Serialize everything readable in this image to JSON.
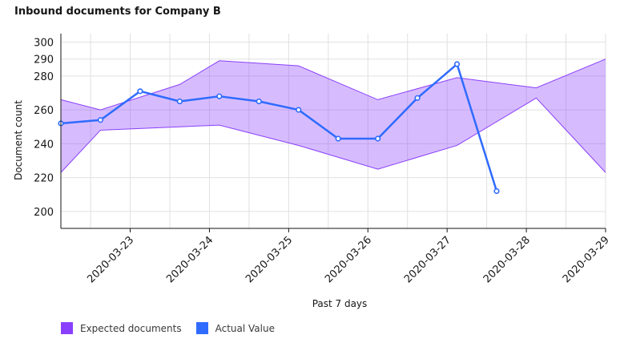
{
  "chart_data": {
    "type": "area",
    "title": "Inbound documents for Company B",
    "xlabel": "Past 7 days",
    "ylabel": "Document count",
    "ylim": [
      190,
      305
    ],
    "yticks": [
      200,
      220,
      240,
      260,
      280,
      290,
      300
    ],
    "x_start": "2020-03-22T15:00",
    "x_end": "2020-03-29T12:00",
    "xtick_labels": [
      "2020-03-23",
      "2020-03-24",
      "2020-03-25",
      "2020-03-26",
      "2020-03-27",
      "2020-03-28",
      "2020-03-29"
    ],
    "band": {
      "name": "Expected documents",
      "color": "#8a3ffc",
      "points": [
        {
          "x": "2020-03-22T15:00",
          "low": 223,
          "high": 266
        },
        {
          "x": "2020-03-23T03:00",
          "low": 248,
          "high": 260
        },
        {
          "x": "2020-03-24T03:00",
          "low": 250,
          "high": 275
        },
        {
          "x": "2020-03-24T15:00",
          "low": 251,
          "high": 289
        },
        {
          "x": "2020-03-25T15:00",
          "low": 239,
          "high": 286
        },
        {
          "x": "2020-03-26T15:00",
          "low": 225,
          "high": 266
        },
        {
          "x": "2020-03-27T15:00",
          "low": 239,
          "high": 279
        },
        {
          "x": "2020-03-28T15:00",
          "low": 267,
          "high": 273
        },
        {
          "x": "2020-03-29T12:00",
          "low": 223,
          "high": 290
        }
      ]
    },
    "series": [
      {
        "name": "Actual Value",
        "color": "#2f6bff",
        "points": [
          {
            "x": "2020-03-22T15:00",
            "y": 252
          },
          {
            "x": "2020-03-23T03:00",
            "y": 254
          },
          {
            "x": "2020-03-23T15:00",
            "y": 271
          },
          {
            "x": "2020-03-24T03:00",
            "y": 265
          },
          {
            "x": "2020-03-24T15:00",
            "y": 268
          },
          {
            "x": "2020-03-25T03:00",
            "y": 265
          },
          {
            "x": "2020-03-25T15:00",
            "y": 260
          },
          {
            "x": "2020-03-26T03:00",
            "y": 243
          },
          {
            "x": "2020-03-26T15:00",
            "y": 243
          },
          {
            "x": "2020-03-27T03:00",
            "y": 267
          },
          {
            "x": "2020-03-27T15:00",
            "y": 287
          },
          {
            "x": "2020-03-28T03:00",
            "y": 212
          }
        ]
      }
    ],
    "grid": true,
    "legend_position": "bottom-left"
  }
}
